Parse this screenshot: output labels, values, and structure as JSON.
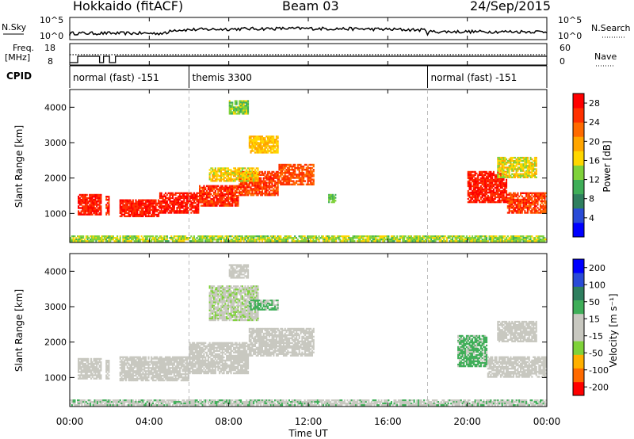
{
  "header": {
    "station": "Hokkaido (fitACF)",
    "beam": "Beam 03",
    "date": "24/Sep/2015"
  },
  "strip": {
    "nsky_label": "N.Sky",
    "nsky_ticks": [
      "10^5",
      "10^0"
    ],
    "nsearch_label": "N.Search",
    "nsearch_ticks": [
      "10^5",
      "10^0"
    ],
    "freq_label_line1": "Freq.",
    "freq_label_line2": "[MHz]",
    "freq_ticks": [
      "18",
      "8"
    ],
    "nave_label": "Nave",
    "nave_ticks": [
      "60",
      "0"
    ],
    "cpid_label": "CPID",
    "cpid_segments": [
      {
        "label": "normal (fast) -151",
        "start": 0.0,
        "end": 6.0
      },
      {
        "label": "themis 3300",
        "start": 6.0,
        "end": 18.0
      },
      {
        "label": "normal (fast) -151",
        "start": 18.0,
        "end": 24.0
      }
    ]
  },
  "x_axis": {
    "title": "Time UT",
    "ticks": [
      "00:00",
      "04:00",
      "08:00",
      "12:00",
      "16:00",
      "20:00",
      "00:00"
    ],
    "range_hours": [
      0,
      24
    ]
  },
  "colors": {
    "power": [
      "#0000ff",
      "#2a4bd7",
      "#2f7f5f",
      "#3fae58",
      "#7fd23a",
      "#ffd700",
      "#ffa500",
      "#ff6a00",
      "#ff3000",
      "#ff0000"
    ],
    "velocity": [
      "#ff0000",
      "#ff6a00",
      "#ffb000",
      "#7fd23a",
      "#c8c8c0",
      "#c8c8c0",
      "#3fae58",
      "#2f7f5f",
      "#2a4bd7",
      "#0000ff"
    ]
  },
  "chart_data": [
    {
      "type": "heatmap",
      "panel": "power",
      "ylabel": "Slant Range [km]",
      "xlabel": "",
      "ylim": [
        180,
        4500
      ],
      "yticks": [
        "1000",
        "2000",
        "3000",
        "4000"
      ],
      "colorbar": {
        "label": "Power [dB]",
        "ticks": [
          "4",
          "8",
          "12",
          "16",
          "20",
          "24",
          "28"
        ],
        "range": [
          0,
          30
        ]
      },
      "regions": [
        {
          "t": [
            0.4,
            1.6
          ],
          "r": [
            950,
            1550
          ],
          "v": 27
        },
        {
          "t": [
            1.8,
            2.0
          ],
          "r": [
            950,
            1500
          ],
          "v": 26
        },
        {
          "t": [
            2.5,
            4.5
          ],
          "r": [
            900,
            1400
          ],
          "v": 27
        },
        {
          "t": [
            4.5,
            6.5
          ],
          "r": [
            1000,
            1600
          ],
          "v": 27
        },
        {
          "t": [
            6.5,
            8.5
          ],
          "r": [
            1200,
            1800
          ],
          "v": 26
        },
        {
          "t": [
            8.5,
            10.5
          ],
          "r": [
            1500,
            2200
          ],
          "v": 25
        },
        {
          "t": [
            10.5,
            12.3
          ],
          "r": [
            1800,
            2400
          ],
          "v": 24
        },
        {
          "t": [
            7.0,
            9.5
          ],
          "r": [
            1900,
            2300
          ],
          "v": 17
        },
        {
          "t": [
            9.0,
            10.5
          ],
          "r": [
            2700,
            3200
          ],
          "v": 18
        },
        {
          "t": [
            8.0,
            9.0
          ],
          "r": [
            3800,
            4200
          ],
          "v": 13
        },
        {
          "t": [
            13.0,
            13.4
          ],
          "r": [
            1300,
            1550
          ],
          "v": 12
        },
        {
          "t": [
            20.0,
            22.0
          ],
          "r": [
            1300,
            2200
          ],
          "v": 27
        },
        {
          "t": [
            22.0,
            24.0
          ],
          "r": [
            1000,
            1600
          ],
          "v": 25
        },
        {
          "t": [
            21.5,
            23.5
          ],
          "r": [
            2000,
            2600
          ],
          "v": 16
        },
        {
          "t": [
            0.0,
            24.0
          ],
          "r": [
            200,
            380
          ],
          "v": 14
        }
      ]
    },
    {
      "type": "heatmap",
      "panel": "velocity",
      "ylabel": "Slant Range [km]",
      "xlabel": "Time UT",
      "ylim": [
        180,
        4500
      ],
      "yticks": [
        "1000",
        "2000",
        "3000",
        "4000"
      ],
      "colorbar": {
        "label": "Velocity [m s⁻¹]",
        "ticks": [
          "200",
          "100",
          "50",
          "15",
          "-15",
          "-50",
          "-100",
          "-200"
        ],
        "range": [
          -250,
          250
        ]
      },
      "regions": [
        {
          "t": [
            0.4,
            1.6
          ],
          "r": [
            950,
            1550
          ],
          "v": 0
        },
        {
          "t": [
            1.8,
            2.0
          ],
          "r": [
            950,
            1500
          ],
          "v": 0
        },
        {
          "t": [
            2.5,
            6.0
          ],
          "r": [
            900,
            1600
          ],
          "v": 0
        },
        {
          "t": [
            6.0,
            9.0
          ],
          "r": [
            1100,
            2000
          ],
          "v": 0
        },
        {
          "t": [
            9.0,
            12.3
          ],
          "r": [
            1600,
            2400
          ],
          "v": 0
        },
        {
          "t": [
            7.0,
            9.5
          ],
          "r": [
            2600,
            3600
          ],
          "v": -40
        },
        {
          "t": [
            9.0,
            10.5
          ],
          "r": [
            2900,
            3200
          ],
          "v": 60
        },
        {
          "t": [
            8.0,
            9.0
          ],
          "r": [
            3800,
            4200
          ],
          "v": 0
        },
        {
          "t": [
            19.5,
            21.0
          ],
          "r": [
            1300,
            2200
          ],
          "v": 60
        },
        {
          "t": [
            21.0,
            24.0
          ],
          "r": [
            1000,
            1600
          ],
          "v": 0
        },
        {
          "t": [
            21.5,
            23.5
          ],
          "r": [
            2000,
            2600
          ],
          "v": 0
        },
        {
          "t": [
            0.0,
            24.0
          ],
          "r": [
            200,
            380
          ],
          "v": 40
        }
      ]
    }
  ]
}
